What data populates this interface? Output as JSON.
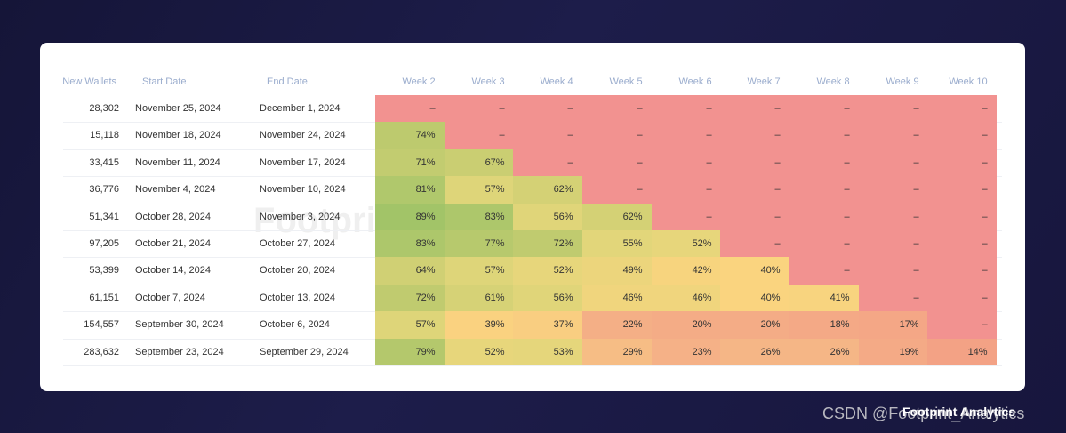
{
  "table": {
    "headers": [
      "New Wallets",
      "Start Date",
      "End Date",
      "Week 2",
      "Week 3",
      "Week 4",
      "Week 5",
      "Week 6",
      "Week 7",
      "Week 8",
      "Week 9",
      "Week 10"
    ],
    "rows": [
      [
        "28,302",
        "November 25, 2024",
        "December 1, 2024",
        "–",
        "–",
        "–",
        "–",
        "–",
        "–",
        "–",
        "–",
        "–"
      ],
      [
        "15,118",
        "November 18, 2024",
        "November 24, 2024",
        "74%",
        "–",
        "–",
        "–",
        "–",
        "–",
        "–",
        "–",
        "–"
      ],
      [
        "33,415",
        "November 11, 2024",
        "November 17, 2024",
        "71%",
        "67%",
        "–",
        "–",
        "–",
        "–",
        "–",
        "–",
        "–"
      ],
      [
        "36,776",
        "November 4, 2024",
        "November 10, 2024",
        "81%",
        "57%",
        "62%",
        "–",
        "–",
        "–",
        "–",
        "–",
        "–"
      ],
      [
        "51,341",
        "October 28, 2024",
        "November 3, 2024",
        "89%",
        "83%",
        "56%",
        "62%",
        "–",
        "–",
        "–",
        "–",
        "–"
      ],
      [
        "97,205",
        "October 21, 2024",
        "October 27, 2024",
        "83%",
        "77%",
        "72%",
        "55%",
        "52%",
        "–",
        "–",
        "–",
        "–"
      ],
      [
        "53,399",
        "October 14, 2024",
        "October 20, 2024",
        "64%",
        "57%",
        "52%",
        "49%",
        "42%",
        "40%",
        "–",
        "–",
        "–"
      ],
      [
        "61,151",
        "October 7, 2024",
        "October 13, 2024",
        "72%",
        "61%",
        "56%",
        "46%",
        "46%",
        "40%",
        "41%",
        "–",
        "–"
      ],
      [
        "154,557",
        "September 30, 2024",
        "October 6, 2024",
        "57%",
        "39%",
        "37%",
        "22%",
        "20%",
        "20%",
        "18%",
        "17%",
        "–"
      ],
      [
        "283,632",
        "September 23, 2024",
        "September 29, 2024",
        "79%",
        "52%",
        "53%",
        "29%",
        "23%",
        "26%",
        "26%",
        "19%",
        "14%"
      ]
    ]
  },
  "watermark": "Footprint Analytics",
  "footer": {
    "source": "CSDN @Footprint_Analytics",
    "logo": "Footprint Analytics"
  }
}
